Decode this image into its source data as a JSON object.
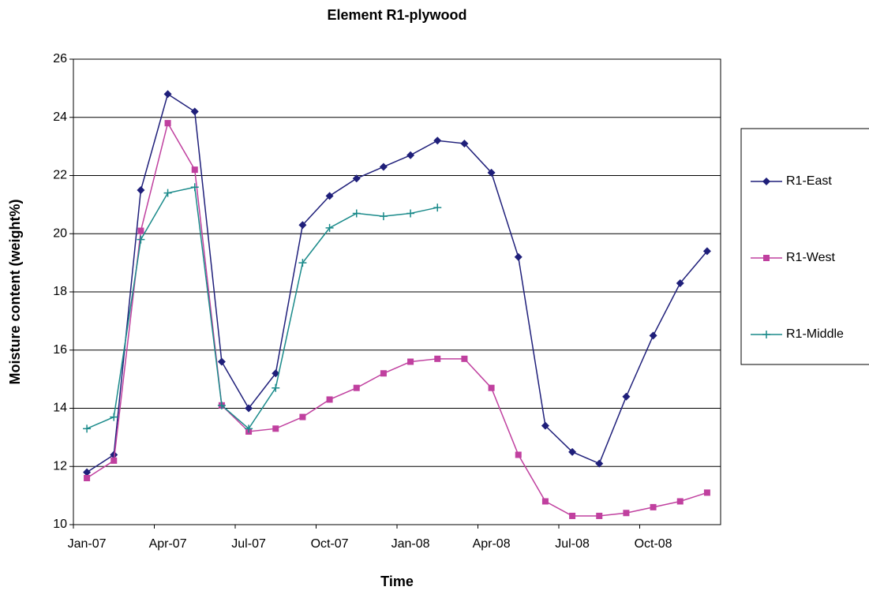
{
  "chart_data": {
    "type": "line",
    "title": "Element R1-plywood",
    "x_label": "Time",
    "y_label": "Moisture content (weight%)",
    "categories": [
      "Jan-07",
      null,
      null,
      "Apr-07",
      null,
      null,
      "Jul-07",
      null,
      null,
      "Oct-07",
      null,
      null,
      "Jan-08",
      null,
      null,
      "Apr-08",
      null,
      null,
      "Jul-08",
      null,
      null,
      "Oct-08",
      null,
      null
    ],
    "series": [
      {
        "name": "R1-East",
        "color": "#1f1f7a",
        "marker": "diamond",
        "values": [
          11.8,
          12.4,
          21.5,
          24.8,
          24.2,
          15.6,
          14.0,
          15.2,
          20.3,
          21.3,
          21.9,
          22.3,
          22.7,
          23.2,
          23.1,
          22.1,
          19.2,
          13.4,
          12.5,
          12.1,
          14.4,
          16.5,
          18.3,
          19.4
        ]
      },
      {
        "name": "R1-West",
        "color": "#c0409f",
        "marker": "square",
        "values": [
          11.6,
          12.2,
          20.1,
          23.8,
          22.2,
          14.1,
          13.2,
          13.3,
          13.7,
          14.3,
          14.7,
          15.2,
          15.6,
          15.7,
          15.7,
          14.7,
          12.4,
          10.8,
          10.3,
          10.3,
          10.4,
          10.6,
          10.8,
          11.1
        ]
      },
      {
        "name": "R1-Middle",
        "color": "#1a8a8a",
        "marker": "plus",
        "values": [
          13.3,
          13.7,
          19.8,
          21.4,
          21.6,
          14.1,
          13.3,
          14.7,
          19.0,
          20.2,
          20.7,
          20.6,
          20.7,
          20.9,
          null,
          null,
          null,
          null,
          null,
          null,
          null,
          null,
          null,
          null
        ]
      }
    ],
    "ylim": [
      10,
      26
    ],
    "yticks": [
      10,
      12,
      14,
      16,
      18,
      20,
      22,
      24,
      26
    ],
    "grid": true,
    "legend": "right"
  }
}
